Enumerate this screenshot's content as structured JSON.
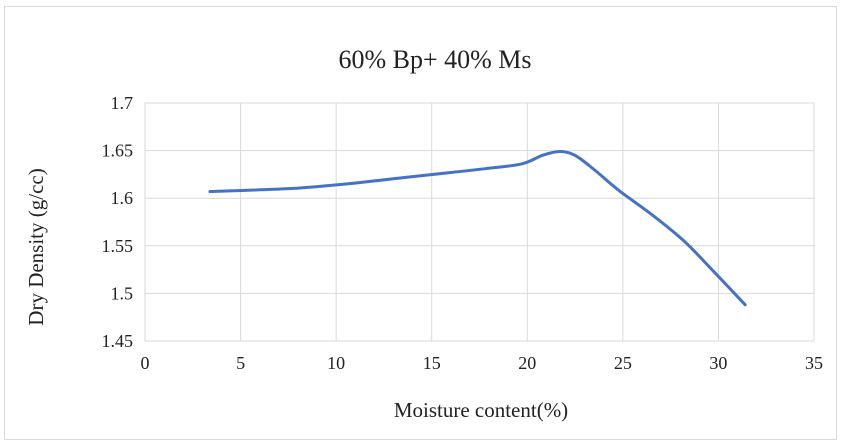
{
  "chart_data": {
    "type": "line",
    "title": "60% Bp+ 40% Ms",
    "xlabel": "Moisture content(%)",
    "ylabel": "Dry Density  (g/cc)",
    "xlim": [
      0,
      35
    ],
    "ylim": [
      1.45,
      1.7
    ],
    "x_ticks": [
      0,
      5,
      10,
      15,
      20,
      25,
      30,
      35
    ],
    "y_ticks": [
      1.45,
      1.5,
      1.55,
      1.6,
      1.65,
      1.7
    ],
    "x_tick_labels": [
      "0",
      "5",
      "10",
      "15",
      "20",
      "25",
      "30",
      "35"
    ],
    "y_tick_labels": [
      "1.45",
      "1.5",
      "1.55",
      "1.6",
      "1.65",
      "1.7"
    ],
    "grid": "both",
    "legend": "none",
    "series": [
      {
        "color": "#4472c4",
        "x": [
          3.4,
          7.5,
          10.0,
          11.5,
          13.7,
          16.0,
          17.8,
          19.7,
          20.8,
          21.7,
          22.5,
          23.5,
          24.8,
          26.5,
          28.2,
          29.8,
          31.4
        ],
        "y": [
          1.607,
          1.61,
          1.614,
          1.617,
          1.622,
          1.627,
          1.631,
          1.636,
          1.645,
          1.649,
          1.645,
          1.63,
          1.608,
          1.583,
          1.555,
          1.522,
          1.488
        ]
      }
    ]
  }
}
